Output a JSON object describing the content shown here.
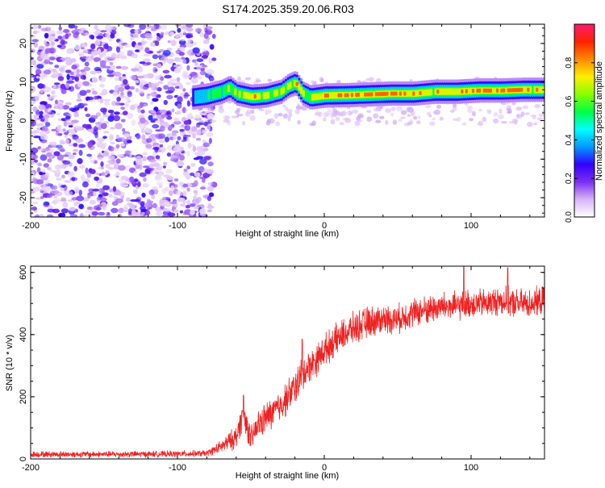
{
  "title": "S174.2025.359.20.06.R03",
  "chart_data": [
    {
      "type": "heatmap",
      "xlabel": "Height of straight line (km)",
      "ylabel": "Frequency (Hz)",
      "xlim": [
        -200,
        150
      ],
      "ylim": [
        -25,
        25
      ],
      "xticks": [
        -200,
        -100,
        0,
        100
      ],
      "yticks": [
        -20,
        -10,
        0,
        10,
        20
      ],
      "colorbar": {
        "label": "Normalized spectral amplitude",
        "range": [
          0,
          1
        ],
        "ticks": [
          0.0,
          0.2,
          0.4,
          0.6,
          0.8
        ],
        "colors": [
          "#ffffff",
          "#d8b4f8",
          "#7b2ff0",
          "#3300ff",
          "#0099ff",
          "#00ffff",
          "#00ff44",
          "#88ff00",
          "#ffee00",
          "#ff8800",
          "#ff2200",
          "#ff1a6e"
        ]
      },
      "noise_region": {
        "x": [
          -200,
          -80
        ],
        "y": [
          -25,
          25
        ],
        "amplitude": [
          0.05,
          0.3
        ]
      },
      "ridge": [
        {
          "x": -90,
          "f": 6.0,
          "a": 0.35
        },
        {
          "x": -80,
          "f": 6.5,
          "a": 0.55
        },
        {
          "x": -70,
          "f": 7.5,
          "a": 0.6
        },
        {
          "x": -65,
          "f": 8.5,
          "a": 0.7
        },
        {
          "x": -60,
          "f": 7.0,
          "a": 0.65
        },
        {
          "x": -50,
          "f": 6.2,
          "a": 0.8
        },
        {
          "x": -40,
          "f": 6.5,
          "a": 0.75
        },
        {
          "x": -30,
          "f": 7.5,
          "a": 0.8
        },
        {
          "x": -25,
          "f": 9.0,
          "a": 0.7
        },
        {
          "x": -20,
          "f": 9.8,
          "a": 0.75
        },
        {
          "x": -15,
          "f": 7.0,
          "a": 0.7
        },
        {
          "x": -10,
          "f": 6.0,
          "a": 0.65
        },
        {
          "x": 0,
          "f": 6.5,
          "a": 0.8
        },
        {
          "x": 15,
          "f": 6.6,
          "a": 0.85
        },
        {
          "x": 30,
          "f": 6.8,
          "a": 0.9
        },
        {
          "x": 45,
          "f": 7.0,
          "a": 0.95
        },
        {
          "x": 60,
          "f": 7.0,
          "a": 0.85
        },
        {
          "x": 75,
          "f": 7.5,
          "a": 0.8
        },
        {
          "x": 90,
          "f": 7.5,
          "a": 0.8
        },
        {
          "x": 105,
          "f": 7.8,
          "a": 0.9
        },
        {
          "x": 120,
          "f": 7.8,
          "a": 0.95
        },
        {
          "x": 135,
          "f": 8.0,
          "a": 0.8
        },
        {
          "x": 150,
          "f": 8.0,
          "a": 0.75
        }
      ]
    },
    {
      "type": "line",
      "xlabel": "Height of straight line (km)",
      "ylabel": "SNR (10 * v/v)",
      "xlim": [
        -200,
        150
      ],
      "ylim": [
        0,
        620
      ],
      "xticks": [
        -200,
        -100,
        0,
        100
      ],
      "yticks": [
        0,
        200,
        400,
        600
      ],
      "color": "#ee2222",
      "series": [
        {
          "name": "SNR",
          "x": [
            -200,
            -150,
            -100,
            -80,
            -70,
            -60,
            -55,
            -50,
            -45,
            -40,
            -35,
            -30,
            -25,
            -20,
            -15,
            -10,
            -5,
            0,
            10,
            20,
            30,
            40,
            50,
            60,
            70,
            80,
            90,
            100,
            110,
            120,
            130,
            140,
            150
          ],
          "y": [
            15,
            15,
            16,
            18,
            40,
            70,
            150,
            60,
            110,
            130,
            150,
            170,
            200,
            230,
            270,
            300,
            320,
            350,
            390,
            420,
            440,
            450,
            450,
            470,
            480,
            490,
            490,
            500,
            500,
            510,
            500,
            500,
            510
          ],
          "noise": [
            12,
            12,
            12,
            12,
            25,
            45,
            55,
            50,
            55,
            60,
            60,
            60,
            65,
            65,
            70,
            60,
            60,
            60,
            60,
            60,
            60,
            55,
            55,
            55,
            55,
            55,
            55,
            55,
            55,
            55,
            55,
            55,
            55
          ]
        }
      ],
      "spikes": [
        {
          "x": -55,
          "y": 205
        },
        {
          "x": -15,
          "y": 385
        },
        {
          "x": 95,
          "y": 618
        },
        {
          "x": 125,
          "y": 615
        }
      ]
    }
  ]
}
